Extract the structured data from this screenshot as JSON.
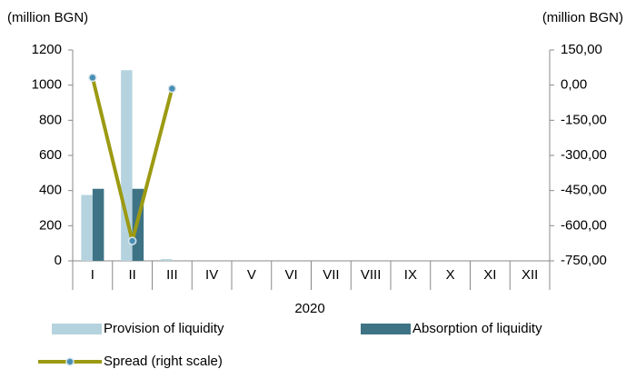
{
  "chart_data": {
    "type": "bar",
    "y_label": "(million BGN)",
    "y2_label": "(million BGN)",
    "x_label": "2020",
    "categories": [
      "I",
      "II",
      "III",
      "IV",
      "V",
      "VI",
      "VII",
      "VIII",
      "IX",
      "X",
      "XI",
      "XII"
    ],
    "series": [
      {
        "name": "Provision of liquidity",
        "color": "#b5d3df",
        "type": "bar",
        "values": [
          375,
          1085,
          10,
          null,
          null,
          null,
          null,
          null,
          null,
          null,
          null,
          null
        ]
      },
      {
        "name": "Absorption of liquidity",
        "color": "#3e7386",
        "type": "bar",
        "values": [
          410,
          410,
          null,
          null,
          null,
          null,
          null,
          null,
          null,
          null,
          null,
          null
        ]
      },
      {
        "name": "Spread (right scale)",
        "color": "#9c9a12",
        "marker_color": "#4a8fb4",
        "type": "line",
        "axis": "y2",
        "values": [
          32,
          -665,
          -15,
          null,
          null,
          null,
          null,
          null,
          null,
          null,
          null,
          null
        ]
      }
    ],
    "ylim": [
      0,
      1200
    ],
    "yticks": [
      0,
      200,
      400,
      600,
      800,
      1000,
      1200
    ],
    "y2lim": [
      -750,
      150
    ],
    "y2ticks": [
      {
        "value": -750,
        "label": "-750,00"
      },
      {
        "value": -600,
        "label": "-600,00"
      },
      {
        "value": -450,
        "label": "-450,00"
      },
      {
        "value": -300,
        "label": "-300,00"
      },
      {
        "value": -150,
        "label": "-150,00"
      },
      {
        "value": 0,
        "label": "0,00"
      },
      {
        "value": 150,
        "label": "150,00"
      }
    ]
  }
}
